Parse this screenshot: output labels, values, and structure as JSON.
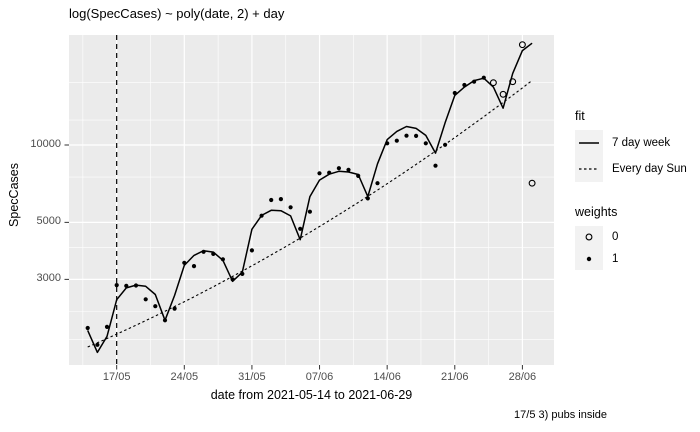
{
  "chart_data": {
    "type": "scatter+line",
    "title": "log(SpecCases) ~ poly(date, 2) + day",
    "xlabel": "date from 2021-05-14 to 2021-06-29",
    "ylabel": "SpecCases",
    "caption": "17/5 3) pubs inside",
    "y_scale": "log10",
    "ylim": [
      1500,
      26500
    ],
    "grid": true,
    "legend_position": "right",
    "x_tick_labels": [
      "17/05",
      "24/05",
      "31/05",
      "07/06",
      "14/06",
      "21/06",
      "28/06"
    ],
    "y_tick_labels": [
      "10000",
      "5000",
      "3000"
    ],
    "y_tick_values": [
      10000,
      5000,
      3000
    ],
    "vline_date": "2021-05-17",
    "dates": [
      "2021-05-14",
      "2021-05-15",
      "2021-05-16",
      "2021-05-17",
      "2021-05-18",
      "2021-05-19",
      "2021-05-20",
      "2021-05-21",
      "2021-05-22",
      "2021-05-23",
      "2021-05-24",
      "2021-05-25",
      "2021-05-26",
      "2021-05-27",
      "2021-05-28",
      "2021-05-29",
      "2021-05-30",
      "2021-05-31",
      "2021-06-01",
      "2021-06-02",
      "2021-06-03",
      "2021-06-04",
      "2021-06-05",
      "2021-06-06",
      "2021-06-07",
      "2021-06-08",
      "2021-06-09",
      "2021-06-10",
      "2021-06-11",
      "2021-06-12",
      "2021-06-13",
      "2021-06-14",
      "2021-06-15",
      "2021-06-16",
      "2021-06-17",
      "2021-06-18",
      "2021-06-19",
      "2021-06-20",
      "2021-06-21",
      "2021-06-22",
      "2021-06-23",
      "2021-06-24",
      "2021-06-25",
      "2021-06-26",
      "2021-06-27",
      "2021-06-28",
      "2021-06-29"
    ],
    "points": {
      "values": [
        1940,
        1670,
        1960,
        2850,
        2830,
        2840,
        2510,
        2360,
        2080,
        2310,
        3480,
        3380,
        3840,
        3770,
        3590,
        3000,
        3150,
        3890,
        5310,
        6110,
        6160,
        5720,
        4720,
        5500,
        7760,
        7800,
        8120,
        8010,
        7580,
        6200,
        7100,
        10150,
        10390,
        10870,
        10850,
        10150,
        8310,
        10020,
        15930,
        17120,
        17630,
        18280,
        17480,
        15750,
        17630,
        24570,
        7100
      ],
      "weights": [
        1,
        1,
        1,
        1,
        1,
        1,
        1,
        1,
        1,
        1,
        1,
        1,
        1,
        1,
        1,
        1,
        1,
        1,
        1,
        1,
        1,
        1,
        1,
        1,
        1,
        1,
        1,
        1,
        1,
        1,
        1,
        1,
        1,
        1,
        1,
        1,
        1,
        1,
        1,
        1,
        1,
        1,
        0,
        0,
        0,
        0,
        0
      ]
    },
    "series": [
      {
        "name": "7 day week",
        "style": "solid",
        "values": [
          1900,
          1560,
          1800,
          2500,
          2780,
          2850,
          2820,
          2620,
          2080,
          2600,
          3400,
          3720,
          3880,
          3830,
          3560,
          2950,
          3200,
          4700,
          5320,
          5570,
          5550,
          5300,
          4280,
          6300,
          7300,
          7700,
          7900,
          7850,
          7680,
          6300,
          8450,
          10500,
          11300,
          11800,
          11600,
          10900,
          9300,
          12200,
          15600,
          16800,
          17800,
          18200,
          16800,
          13900,
          19000,
          23300,
          24900
        ]
      },
      {
        "name": "Every day Sun",
        "style": "dashed",
        "values": [
          1637,
          1700,
          1766,
          1837,
          1911,
          1990,
          2073,
          2161,
          2254,
          2352,
          2457,
          2567,
          2684,
          2808,
          2940,
          3081,
          3230,
          3387,
          3556,
          3735,
          3924,
          4127,
          4343,
          4573,
          4819,
          5080,
          5358,
          5657,
          5974,
          6316,
          6678,
          7067,
          7483,
          7929,
          8406,
          8918,
          9468,
          10060,
          10690,
          11370,
          12100,
          12890,
          13730,
          14640,
          15620,
          16680,
          17820
        ]
      }
    ]
  },
  "legend": {
    "fit_title": "fit",
    "weights_title": "weights",
    "weight_labels": [
      "0",
      "1"
    ]
  }
}
